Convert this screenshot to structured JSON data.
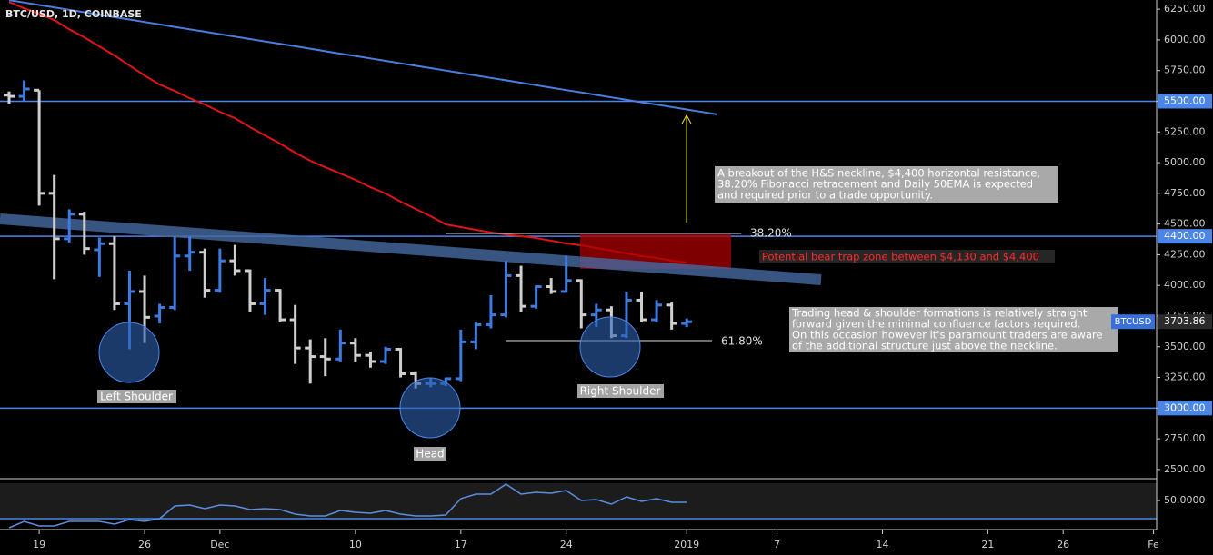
{
  "chart_data": {
    "type": "ohlc",
    "title": "BTC/USD, 1D, COINBASE",
    "categories": [
      null,
      null,
      "19",
      null,
      null,
      null,
      null,
      null,
      null,
      "26",
      null,
      null,
      null,
      null,
      "Dec",
      null,
      null,
      null,
      null,
      null,
      null,
      null,
      null,
      "10",
      null,
      null,
      null,
      null,
      null,
      null,
      "17",
      null,
      null,
      null,
      null,
      null,
      null,
      "24",
      null,
      null,
      null,
      null,
      null,
      null,
      null,
      "2019",
      null,
      null,
      null,
      null,
      null,
      "7",
      null,
      null,
      null,
      null,
      null,
      null,
      "14",
      null,
      null,
      null,
      null,
      null,
      null,
      "21",
      null,
      null,
      null,
      null,
      "26",
      null,
      null,
      null,
      null,
      null,
      "Fe"
    ],
    "ylim": [
      2440,
      6325
    ],
    "yticks": [
      {
        "value": 2500,
        "label": "2500.00"
      },
      {
        "value": 2750,
        "label": "2750.00"
      },
      {
        "value": 3000,
        "label": "3000.00"
      },
      {
        "value": 3250,
        "label": "3250.00"
      },
      {
        "value": 3500,
        "label": "3500.00"
      },
      {
        "value": 3750,
        "label": "3750.00"
      },
      {
        "value": 4000,
        "label": "4000.00"
      },
      {
        "value": 4250,
        "label": "4250.00"
      },
      {
        "value": 4500,
        "label": "4500.00"
      },
      {
        "value": 4750,
        "label": "4750.00"
      },
      {
        "value": 5000,
        "label": "5000.00"
      },
      {
        "value": 5250,
        "label": "5250.00"
      },
      {
        "value": 5500,
        "label": "5500.00"
      },
      {
        "value": 5750,
        "label": "5750.00"
      },
      {
        "value": 6000,
        "label": "6000.00"
      },
      {
        "value": 6250,
        "label": "6250.00"
      }
    ],
    "up_color": "#3d7be0",
    "down_color": "#cfcfcf",
    "ohlc": {
      "open": [
        5550,
        5540,
        5590,
        4750,
        4380,
        4580,
        4290,
        4340,
        3850,
        3950,
        3750,
        3820,
        4240,
        4270,
        3960,
        4200,
        4120,
        3850,
        3960,
        3720,
        3490,
        3420,
        3400,
        3530,
        3430,
        3380,
        3480,
        3280,
        3200,
        3200,
        3240,
        3540,
        3680,
        3760,
        4080,
        3830,
        3990,
        3950,
        4040,
        3760,
        3800,
        3590,
        3880,
        3720,
        3840,
        3690,
        null,
        null,
        null,
        null,
        null,
        null,
        null,
        null,
        null,
        null,
        null,
        null,
        null,
        null,
        null,
        null,
        null,
        null,
        null,
        null,
        null,
        null,
        null,
        null,
        null,
        null,
        null,
        null,
        null,
        null,
        null
      ],
      "high": [
        5580,
        5670,
        5590,
        4900,
        4620,
        4600,
        4390,
        4400,
        4120,
        4080,
        3850,
        4400,
        4400,
        4300,
        4300,
        4330,
        4130,
        4060,
        3970,
        3840,
        3560,
        3570,
        3640,
        3570,
        3460,
        3500,
        3490,
        3300,
        3250,
        3250,
        3640,
        3700,
        3920,
        4200,
        4160,
        4000,
        4060,
        4240,
        4050,
        3850,
        3830,
        3950,
        3950,
        3880,
        3860,
        3730,
        null,
        null,
        null,
        null,
        null,
        null,
        null,
        null,
        null,
        null,
        null,
        null,
        null,
        null,
        null,
        null,
        null,
        null,
        null,
        null,
        null,
        null,
        null,
        null,
        null,
        null,
        null,
        null,
        null,
        null,
        null
      ],
      "low": [
        5480,
        5500,
        4650,
        4050,
        4350,
        4250,
        4070,
        3800,
        3480,
        3530,
        3690,
        3800,
        4120,
        3900,
        3940,
        4080,
        3780,
        3760,
        3700,
        3360,
        3200,
        3260,
        3380,
        3380,
        3330,
        3360,
        3250,
        3160,
        3170,
        3180,
        3220,
        3480,
        3650,
        3740,
        3780,
        3810,
        3930,
        3940,
        3650,
        3660,
        3570,
        3570,
        3700,
        3700,
        3640,
        3660,
        null,
        null,
        null,
        null,
        null,
        null,
        null,
        null,
        null,
        null,
        null,
        null,
        null,
        null,
        null,
        null,
        null,
        null,
        null,
        null,
        null,
        null,
        null,
        null,
        null,
        null,
        null,
        null,
        null,
        null,
        null
      ],
      "close": [
        5540,
        5600,
        4750,
        4380,
        4580,
        4300,
        4340,
        3850,
        3950,
        3740,
        3820,
        4240,
        4270,
        3960,
        4200,
        4120,
        3850,
        3960,
        3720,
        3490,
        3420,
        3400,
        3530,
        3430,
        3380,
        3480,
        3280,
        3200,
        3200,
        3240,
        3540,
        3680,
        3760,
        4080,
        3830,
        3990,
        3950,
        4040,
        3760,
        3800,
        3590,
        3880,
        3720,
        3840,
        3690,
        3703.86,
        null,
        null,
        null,
        null,
        null,
        null,
        null,
        null,
        null,
        null,
        null,
        null,
        null,
        null,
        null,
        null,
        null,
        null,
        null,
        null,
        null,
        null,
        null,
        null,
        null,
        null,
        null,
        null,
        null,
        null,
        null
      ]
    },
    "lines": [
      {
        "color": "#e01414",
        "values": [
          6309,
          6257,
          6213,
          6161,
          6087,
          6021,
          5947,
          5873,
          5791,
          5710,
          5636,
          5584,
          5525,
          5473,
          5414,
          5362,
          5289,
          5222,
          5155,
          5081,
          5015,
          4963,
          4911,
          4860,
          4800,
          4749,
          4682,
          4623,
          4564,
          4497,
          4475,
          4453,
          4431,
          4416,
          4401,
          4386,
          4364,
          4342,
          4327,
          4305,
          4283,
          4261,
          4238,
          4224,
          4201,
          4187,
          null,
          null,
          null,
          null,
          null,
          null,
          null,
          null,
          null,
          null,
          null,
          null,
          null,
          null,
          null,
          null,
          null,
          null,
          null,
          null,
          null,
          null,
          null,
          null,
          null,
          null,
          null,
          null,
          null,
          null,
          null
        ]
      },
      {
        "color": "#4a7fe0",
        "values": [
          6324,
          6304,
          6284,
          6265,
          6245,
          6225,
          6205,
          6185,
          6166,
          6146,
          6126,
          6106,
          6086,
          6067,
          6047,
          6027,
          6007,
          5987,
          5968,
          5948,
          5928,
          5908,
          5888,
          5869,
          5849,
          5829,
          5809,
          5789,
          5770,
          5750,
          5730,
          5710,
          5690,
          5671,
          5651,
          5631,
          5611,
          5591,
          5572,
          5552,
          5532,
          5512,
          5492,
          5473,
          5453,
          5433,
          5413,
          5393,
          null,
          null,
          null,
          null,
          null,
          null,
          null,
          null,
          null,
          null,
          null,
          null,
          null,
          null,
          null,
          null,
          null,
          null,
          null,
          null,
          null,
          null,
          null,
          null,
          null,
          null,
          null,
          null,
          null
        ]
      }
    ],
    "hline_color": "#4a86e8",
    "hlines": [
      {
        "value": 5500,
        "label": "5500.00"
      },
      {
        "value": 4400,
        "label": "4400.00"
      },
      {
        "value": 3000,
        "label": "3000.00"
      }
    ],
    "last_price": {
      "name": "BTCUSD",
      "value": 3703.86
    },
    "annotations": {
      "breakout_note": [
        "A breakout of the H&S neckline, $4,400 horizontal resistance,",
        "38.20% Fibonacci retracement and Daily 50EMA is expected",
        "and required prior to a trade opportunity."
      ],
      "fib_382": "38.20%",
      "fib_618": "61.80%",
      "bear_trap": "Potential bear trap zone between $4,130 and $4,400",
      "hs_note": [
        "Trading head & shoulder formations is relatively straight",
        "forward given the minimal confluence factors required.",
        "On this occasion however it's paramount traders are aware",
        "of the additional structure just above the neckline."
      ],
      "left_shoulder": "Left Shoulder",
      "head": "Head",
      "right_shoulder": "Right Shoulder"
    },
    "rsi": {
      "type": "line",
      "color": "#5b8fe0",
      "ylim": [
        19,
        70
      ],
      "yticks": [
        {
          "value": 50,
          "label": "50.0000"
        }
      ],
      "levels": [
        30
      ],
      "values": [
        20,
        27,
        22,
        22,
        27,
        27,
        27,
        24,
        29,
        27,
        30,
        44,
        45,
        41,
        45,
        44,
        40,
        41,
        40,
        35,
        33,
        33,
        39,
        37,
        36,
        39,
        35,
        33,
        33,
        34,
        52,
        57,
        57,
        68,
        57,
        59,
        58,
        61,
        50,
        51,
        46,
        54,
        49,
        52,
        48,
        48,
        null,
        null,
        null,
        null,
        null,
        null,
        null,
        null,
        null,
        null,
        null,
        null,
        null,
        null,
        null,
        null,
        null,
        null,
        null,
        null,
        null,
        null,
        null,
        null,
        null,
        null,
        null,
        null,
        null,
        null,
        null
      ]
    }
  }
}
